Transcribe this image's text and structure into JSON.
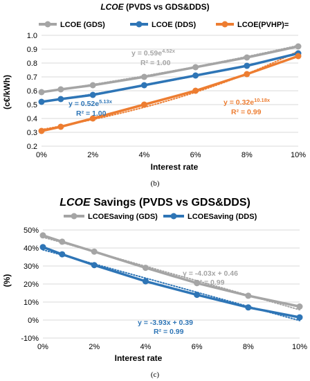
{
  "chart_data": [
    {
      "type": "line",
      "title_parts": [
        "LCOE",
        " (PVDS vs GDS&DDS)"
      ],
      "xlabel": "Interest rate",
      "ylabel": "(c€/kWh)",
      "x": [
        0,
        0.75,
        2,
        4,
        6,
        8,
        10
      ],
      "x_ticks": [
        0,
        2,
        4,
        6,
        8,
        10
      ],
      "x_tick_labels": [
        "0%",
        "2%",
        "4%",
        "6%",
        "8%",
        "10%"
      ],
      "ylim": [
        0.2,
        1.0
      ],
      "y_ticks": [
        0.2,
        0.3,
        0.4,
        0.5,
        0.6,
        0.7,
        0.8,
        0.9,
        1.0
      ],
      "y_tick_labels": [
        "0.2",
        "0.3",
        "0.4",
        "0.5",
        "0.6",
        "0.7",
        "0.8",
        "0.9",
        "1.0"
      ],
      "legend_position": "top",
      "caption": "(b)",
      "series": [
        {
          "name": "LCOE (GDS)",
          "color": "#a5a5a5",
          "values": [
            0.59,
            0.61,
            0.64,
            0.7,
            0.77,
            0.84,
            0.92
          ]
        },
        {
          "name": "LCOE (DDS)",
          "color": "#2e75b6",
          "values": [
            0.52,
            0.54,
            0.57,
            0.64,
            0.71,
            0.78,
            0.87
          ]
        },
        {
          "name": "LCOE(PVHP)=",
          "color": "#ed7d31",
          "values": [
            0.31,
            0.34,
            0.4,
            0.5,
            0.6,
            0.72,
            0.85
          ]
        }
      ],
      "trendlines": [
        {
          "equation": "y = 0.59e",
          "exponent": "4.52x",
          "r2": "R² = 1.00",
          "color": "#a5a5a5",
          "model": "exp",
          "a": 0.59,
          "b": 4.52
        },
        {
          "equation": "y = 0.52e",
          "exponent": "5.13x",
          "r2": "R² = 1.00",
          "color": "#2e75b6",
          "model": "exp",
          "a": 0.52,
          "b": 5.13
        },
        {
          "equation": "y = 0.32e",
          "exponent": "10.18x",
          "r2": "R² = 0.99",
          "color": "#ed7d31",
          "model": "exp",
          "a": 0.32,
          "b": 10.18
        }
      ]
    },
    {
      "type": "line",
      "title_parts": [
        "LCOE",
        " Savings (PVDS vs GDS&DDS)"
      ],
      "xlabel": "Interest rate",
      "ylabel": "(%)",
      "x": [
        0,
        0.75,
        2,
        4,
        6,
        8,
        10
      ],
      "x_ticks": [
        0,
        2,
        4,
        6,
        8,
        10
      ],
      "x_tick_labels": [
        "0%",
        "2%",
        "4%",
        "6%",
        "8%",
        "10%"
      ],
      "ylim": [
        -10,
        50
      ],
      "y_ticks": [
        -10,
        0,
        10,
        20,
        30,
        40,
        50
      ],
      "y_tick_labels": [
        "-10%",
        "0%",
        "10%",
        "20%",
        "30%",
        "40%",
        "50%"
      ],
      "legend_position": "top",
      "caption": "(c)",
      "series": [
        {
          "name": "LCOESaving (GDS)",
          "color": "#a5a5a5",
          "values": [
            47,
            43.5,
            38,
            29,
            20.5,
            13.5,
            7.5
          ]
        },
        {
          "name": "LCOESaving  (DDS)",
          "color": "#2e75b6",
          "values": [
            40.5,
            36.5,
            30.5,
            21.5,
            14,
            7,
            1.5
          ]
        }
      ],
      "trendlines": [
        {
          "equation": "y = -4.03x + 0.46",
          "r2": "R² = 0.99",
          "color": "#a5a5a5",
          "model": "linear",
          "a": -4.03,
          "b": 0.46
        },
        {
          "equation": "y = -3.93x + 0.39",
          "r2": "R² = 0.99",
          "color": "#2e75b6",
          "model": "linear",
          "a": -3.93,
          "b": 0.39
        }
      ]
    }
  ]
}
